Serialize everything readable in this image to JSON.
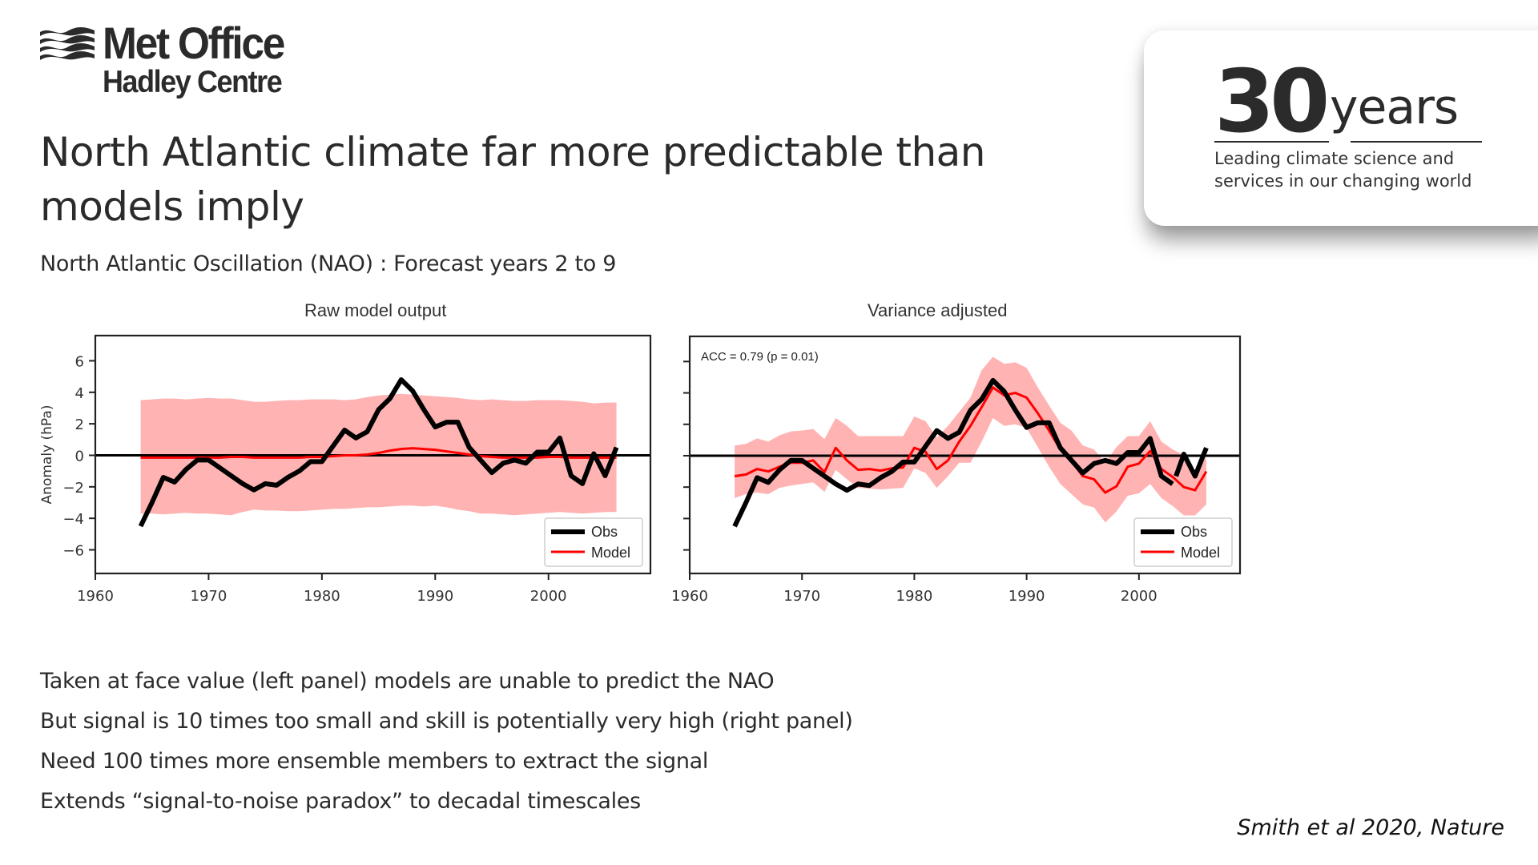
{
  "logo": {
    "icon": "met-office-waves-icon",
    "name": "Met Office",
    "sub": "Hadley Centre"
  },
  "title": "North Atlantic climate far more predictable than models imply",
  "subtitle": "North Atlantic Oscillation (NAO) : Forecast years 2 to 9",
  "anniversary_card": {
    "number": "30",
    "unit": "years",
    "tagline_line1": "Leading climate science and",
    "tagline_line2": "services in our changing world"
  },
  "bullets": [
    "Taken at face value (left panel) models are unable to predict the NAO",
    "But signal is 10 times too small and skill is potentially very high (right panel)",
    "Need 100 times more ensemble members to extract the signal",
    "Extends “signal-to-noise paradox” to decadal timescales"
  ],
  "citation": "Smith et al 2020, Nature",
  "colors": {
    "obs": "#000000",
    "model": "#ff0000",
    "band": "#ffb3b3",
    "text": "#2b2b2b"
  },
  "chart_data": [
    {
      "type": "line",
      "title": "Raw model output",
      "xlabel": "",
      "ylabel": "Anomaly (hPa)",
      "xlim": [
        1960,
        2009
      ],
      "ylim": [
        -7.5,
        7.6
      ],
      "xticks": [
        1960,
        1970,
        1980,
        1990,
        2000
      ],
      "yticks": [
        6,
        4,
        2,
        0,
        -2,
        -4,
        -6
      ],
      "ytick_labels": [
        "6",
        "4",
        "2",
        "0",
        "−2",
        "−4",
        "−6"
      ],
      "show_ytick_labels": true,
      "zero_line": true,
      "grid": false,
      "annotation": "",
      "legend": {
        "position": "lower-right",
        "entries": [
          "Obs",
          "Model"
        ]
      },
      "x": [
        1964,
        1965,
        1966,
        1967,
        1968,
        1969,
        1970,
        1971,
        1972,
        1973,
        1974,
        1975,
        1976,
        1977,
        1978,
        1979,
        1980,
        1981,
        1982,
        1983,
        1984,
        1985,
        1986,
        1987,
        1988,
        1989,
        1990,
        1991,
        1992,
        1993,
        1994,
        1995,
        1996,
        1997,
        1998,
        1999,
        2000,
        2001,
        2002,
        2003,
        2004,
        2005,
        2006
      ],
      "series": [
        {
          "name": "Obs",
          "values": [
            -4.5,
            -3.0,
            -1.4,
            -1.7,
            -0.9,
            -0.3,
            -0.3,
            -0.8,
            -1.3,
            -1.8,
            -2.2,
            -1.8,
            -1.9,
            -1.4,
            -1.0,
            -0.4,
            -0.4,
            0.6,
            1.6,
            1.1,
            1.5,
            2.9,
            3.6,
            4.8,
            4.1,
            2.9,
            1.8,
            2.1,
            2.1,
            0.5,
            -0.3,
            -1.1,
            -0.5,
            -0.3,
            -0.5,
            0.2,
            0.2,
            1.1,
            -1.3,
            -1.8,
            0.1,
            -1.3,
            0.5
          ]
        },
        {
          "name": "Model",
          "values": [
            -0.15,
            -0.15,
            -0.15,
            -0.15,
            -0.15,
            -0.15,
            -0.15,
            -0.15,
            -0.1,
            -0.1,
            -0.15,
            -0.15,
            -0.15,
            -0.15,
            -0.15,
            -0.1,
            -0.1,
            -0.05,
            0.0,
            0.0,
            0.05,
            0.15,
            0.3,
            0.4,
            0.45,
            0.4,
            0.35,
            0.25,
            0.15,
            0.05,
            -0.05,
            -0.1,
            -0.15,
            -0.15,
            -0.15,
            -0.15,
            -0.1,
            -0.1,
            -0.15,
            -0.15,
            -0.15,
            -0.15,
            -0.15
          ]
        }
      ],
      "band": {
        "name": "Model spread",
        "upper": [
          3.5,
          3.55,
          3.6,
          3.6,
          3.55,
          3.6,
          3.65,
          3.6,
          3.6,
          3.5,
          3.4,
          3.4,
          3.45,
          3.5,
          3.5,
          3.55,
          3.55,
          3.55,
          3.5,
          3.55,
          3.7,
          3.8,
          3.85,
          3.9,
          3.85,
          3.8,
          3.75,
          3.7,
          3.65,
          3.55,
          3.5,
          3.55,
          3.5,
          3.45,
          3.45,
          3.5,
          3.5,
          3.5,
          3.45,
          3.4,
          3.3,
          3.35,
          3.35
        ],
        "lower": [
          -3.7,
          -3.7,
          -3.75,
          -3.7,
          -3.65,
          -3.7,
          -3.7,
          -3.75,
          -3.8,
          -3.6,
          -3.45,
          -3.5,
          -3.5,
          -3.55,
          -3.55,
          -3.5,
          -3.45,
          -3.4,
          -3.4,
          -3.35,
          -3.3,
          -3.3,
          -3.25,
          -3.2,
          -3.2,
          -3.25,
          -3.2,
          -3.3,
          -3.45,
          -3.55,
          -3.7,
          -3.7,
          -3.75,
          -3.8,
          -3.75,
          -3.7,
          -3.65,
          -3.6,
          -3.65,
          -3.7,
          -3.65,
          -3.6,
          -3.6
        ]
      }
    },
    {
      "type": "line",
      "title": "Variance adjusted",
      "xlabel": "",
      "ylabel": "",
      "xlim": [
        1960,
        2009
      ],
      "ylim": [
        -7.5,
        7.6
      ],
      "xticks": [
        1960,
        1970,
        1980,
        1990,
        2000
      ],
      "yticks": [
        6,
        4,
        2,
        0,
        -2,
        -4,
        -6
      ],
      "ytick_labels": [
        "",
        "",
        "",
        "",
        "",
        "",
        ""
      ],
      "show_ytick_labels": false,
      "zero_line": true,
      "grid": false,
      "annotation": "ACC = 0.79 (p = 0.01)",
      "legend": {
        "position": "lower-right",
        "entries": [
          "Obs",
          "Model"
        ]
      },
      "x": [
        1964,
        1965,
        1966,
        1967,
        1968,
        1969,
        1970,
        1971,
        1972,
        1973,
        1974,
        1975,
        1976,
        1977,
        1978,
        1979,
        1980,
        1981,
        1982,
        1983,
        1984,
        1985,
        1986,
        1987,
        1988,
        1989,
        1990,
        1991,
        1992,
        1993,
        1994,
        1995,
        1996,
        1997,
        1998,
        1999,
        2000,
        2001,
        2002,
        2003,
        2004,
        2005,
        2006
      ],
      "obs_break_after": 2003,
      "series": [
        {
          "name": "Obs",
          "values": [
            -4.5,
            -3.0,
            -1.4,
            -1.7,
            -0.9,
            -0.3,
            -0.3,
            -0.8,
            -1.3,
            -1.8,
            -2.2,
            -1.8,
            -1.9,
            -1.4,
            -1.0,
            -0.4,
            -0.4,
            0.6,
            1.6,
            1.1,
            1.5,
            2.9,
            3.6,
            4.8,
            4.1,
            2.9,
            1.8,
            2.1,
            2.1,
            0.5,
            -0.3,
            -1.1,
            -0.5,
            -0.3,
            -0.5,
            0.2,
            0.2,
            1.1,
            -1.3,
            -1.8,
            0.1,
            -1.3,
            0.5
          ]
        },
        {
          "name": "Model",
          "values": [
            -1.3,
            -1.2,
            -0.85,
            -1.0,
            -0.7,
            -0.45,
            -0.45,
            -0.3,
            -1.05,
            0.5,
            -0.3,
            -0.9,
            -0.85,
            -0.95,
            -0.8,
            -0.75,
            0.5,
            0.25,
            -0.85,
            -0.3,
            0.9,
            1.9,
            3.1,
            4.35,
            3.85,
            4.0,
            3.7,
            2.7,
            1.6,
            0.4,
            -0.35,
            -1.3,
            -1.5,
            -2.35,
            -1.95,
            -0.7,
            -0.5,
            0.3,
            -0.85,
            -1.35,
            -2.0,
            -2.2,
            -1.0
          ]
        }
      ],
      "band": {
        "name": "Model spread",
        "upper": [
          0.65,
          0.75,
          1.1,
          0.9,
          1.3,
          1.55,
          1.6,
          1.7,
          1.05,
          2.4,
          1.9,
          1.25,
          1.25,
          1.25,
          1.25,
          1.25,
          2.5,
          2.2,
          1.15,
          1.9,
          2.8,
          3.7,
          5.45,
          6.3,
          5.85,
          5.95,
          5.6,
          4.35,
          3.2,
          2.1,
          1.6,
          0.65,
          0.4,
          -0.45,
          0.55,
          1.25,
          1.25,
          2.2,
          0.9,
          0.4,
          0.05,
          -1.1,
          -0.1
        ],
        "lower": [
          -2.7,
          -2.45,
          -2.35,
          -2.45,
          -2.05,
          -1.9,
          -1.8,
          -1.7,
          -2.3,
          -0.9,
          -1.5,
          -2.05,
          -2.1,
          -2.15,
          -2.1,
          -2.05,
          -0.8,
          -1.1,
          -2.05,
          -1.3,
          -0.45,
          -0.45,
          0.9,
          2.4,
          1.9,
          2.0,
          1.75,
          0.55,
          -0.7,
          -1.8,
          -2.45,
          -3.1,
          -3.3,
          -4.25,
          -3.55,
          -2.55,
          -2.4,
          -1.8,
          -2.7,
          -3.2,
          -3.8,
          -3.8,
          -3.1
        ]
      }
    }
  ]
}
